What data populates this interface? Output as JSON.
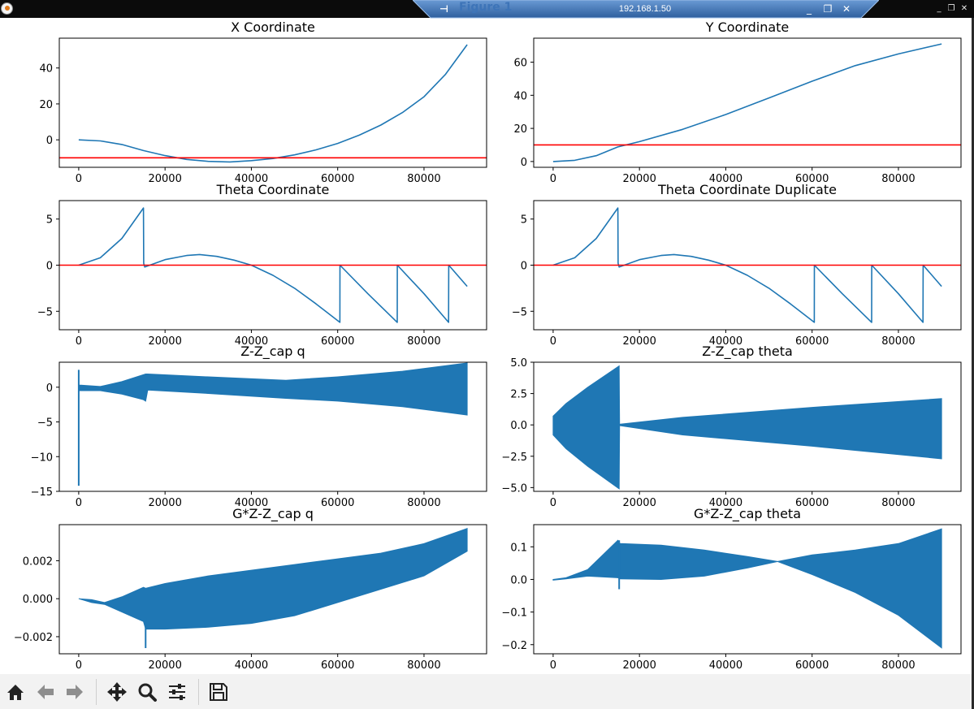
{
  "window": {
    "title": "Figure 1",
    "remote_host": "192.168.1.50",
    "controls": {
      "minimize": "_",
      "restore": "❐",
      "close": "✕"
    },
    "remote_controls": {
      "minimize": "_",
      "restore": "❐",
      "close": "✕"
    },
    "pin_icon": "pin-icon"
  },
  "toolbar": {
    "buttons": [
      {
        "name": "home-button",
        "icon": "home-icon"
      },
      {
        "name": "back-button",
        "icon": "arrow-left-icon"
      },
      {
        "name": "forward-button",
        "icon": "arrow-right-icon"
      },
      {
        "name": "pan-button",
        "icon": "move-icon"
      },
      {
        "name": "zoom-button",
        "icon": "magnifier-icon"
      },
      {
        "name": "configure-subplots-button",
        "icon": "sliders-icon"
      },
      {
        "name": "save-button",
        "icon": "floppy-disk-icon"
      }
    ]
  },
  "colors": {
    "series": "#1f77b4",
    "reference_line": "#ff0000",
    "titlebar": "#0b0b0b",
    "toolbar": "#f2f2f2"
  },
  "chart_data": [
    {
      "type": "line",
      "title": "X Coordinate",
      "xlim": [
        -4500,
        94500
      ],
      "ylim": [
        -15.3,
        56.6
      ],
      "xticks": [
        0,
        20000,
        40000,
        60000,
        80000
      ],
      "xtick_labels": [
        "0",
        "20000",
        "40000",
        "60000",
        "80000"
      ],
      "yticks": [
        0,
        20,
        40
      ],
      "ytick_labels": [
        "0",
        "20",
        "40"
      ],
      "hline": -10,
      "series": [
        {
          "x": [
            0,
            5000,
            10000,
            15000,
            20000,
            25000,
            30000,
            35000,
            40000,
            45000,
            50000,
            55000,
            60000,
            65000,
            70000,
            75000,
            80000,
            85000,
            90000
          ],
          "y": [
            0,
            -0.6,
            -2.6,
            -6.0,
            -8.8,
            -10.9,
            -12.0,
            -12.3,
            -11.6,
            -10.4,
            -8.4,
            -5.6,
            -2.0,
            2.6,
            8.2,
            15.2,
            24.0,
            36.5,
            53
          ]
        }
      ]
    },
    {
      "type": "line",
      "title": "Y Coordinate",
      "xlim": [
        -4500,
        94500
      ],
      "ylim": [
        -3.5,
        74.5
      ],
      "xticks": [
        0,
        20000,
        40000,
        60000,
        80000
      ],
      "xtick_labels": [
        "0",
        "20000",
        "40000",
        "60000",
        "80000"
      ],
      "yticks": [
        0,
        20,
        40,
        60
      ],
      "ytick_labels": [
        "0",
        "20",
        "40",
        "60"
      ],
      "hline": 10,
      "series": [
        {
          "x": [
            0,
            5000,
            10000,
            15000,
            20000,
            30000,
            40000,
            50000,
            60000,
            70000,
            80000,
            90000
          ],
          "y": [
            0,
            0.7,
            3.5,
            8.8,
            12.0,
            19.4,
            28.4,
            38.4,
            48.5,
            57.9,
            65.0,
            71
          ]
        }
      ]
    },
    {
      "type": "line",
      "title": "Theta Coordinate",
      "xlim": [
        -4500,
        94500
      ],
      "ylim": [
        -7,
        7
      ],
      "xticks": [
        0,
        20000,
        40000,
        60000,
        80000
      ],
      "xtick_labels": [
        "0",
        "20000",
        "40000",
        "60000",
        "80000"
      ],
      "yticks": [
        -5,
        0,
        5
      ],
      "ytick_labels": [
        "−5",
        "0",
        "5"
      ],
      "hline": 0,
      "series": [
        {
          "x": [
            0,
            5000,
            10000,
            15000,
            15050,
            15300,
            20000,
            25000,
            28000,
            32000,
            36000,
            40000,
            45000,
            50000,
            55000,
            60500,
            60520,
            67000,
            73800,
            73820,
            80000,
            85700,
            85720,
            90000
          ],
          "y": [
            0,
            0.8,
            2.9,
            6.2,
            0.2,
            -0.2,
            0.6,
            1.05,
            1.15,
            0.95,
            0.55,
            0,
            -1.1,
            -2.5,
            -4.2,
            -6.2,
            0,
            -3.1,
            -6.2,
            0,
            -3.1,
            -6.2,
            0,
            -2.3
          ]
        }
      ]
    },
    {
      "type": "line",
      "title": "Theta Coordinate Duplicate",
      "xlim": [
        -4500,
        94500
      ],
      "ylim": [
        -7,
        7
      ],
      "xticks": [
        0,
        20000,
        40000,
        60000,
        80000
      ],
      "xtick_labels": [
        "0",
        "20000",
        "40000",
        "60000",
        "80000"
      ],
      "yticks": [
        -5,
        0,
        5
      ],
      "ytick_labels": [
        "−5",
        "0",
        "5"
      ],
      "hline": 0,
      "series": [
        {
          "x": [
            0,
            5000,
            10000,
            15000,
            15050,
            15300,
            20000,
            25000,
            28000,
            32000,
            36000,
            40000,
            45000,
            50000,
            55000,
            60500,
            60520,
            67000,
            73800,
            73820,
            80000,
            85700,
            85720,
            90000
          ],
          "y": [
            0,
            0.8,
            2.9,
            6.2,
            0.2,
            -0.2,
            0.6,
            1.05,
            1.15,
            0.95,
            0.55,
            0,
            -1.1,
            -2.5,
            -4.2,
            -6.2,
            0,
            -3.1,
            -6.2,
            0,
            -3.1,
            -6.2,
            0,
            -2.3
          ]
        }
      ]
    },
    {
      "type": "area",
      "title": "Z-Z_cap q",
      "xlim": [
        -4500,
        94500
      ],
      "ylim": [
        -15,
        3.6
      ],
      "xticks": [
        0,
        20000,
        40000,
        60000,
        80000
      ],
      "xtick_labels": [
        "0",
        "20000",
        "40000",
        "60000",
        "80000"
      ],
      "yticks": [
        -15,
        -10,
        -5,
        0
      ],
      "ytick_labels": [
        "−15",
        "−10",
        "−5",
        "0"
      ],
      "spikes": [
        {
          "x": 0,
          "ymin": -14.2,
          "ymax": 2.5
        }
      ],
      "series": [
        {
          "x": [
            0,
            500,
            5000,
            10000,
            15000,
            15500,
            16000,
            30000,
            48000,
            60000,
            75000,
            90000
          ],
          "upper": [
            0.3,
            0.3,
            0.1,
            0.8,
            1.8,
            1.9,
            1.9,
            1.5,
            1.0,
            1.5,
            2.3,
            3.5
          ],
          "lower": [
            -0.5,
            -0.5,
            -0.5,
            -1.0,
            -1.8,
            -2.0,
            -0.4,
            -0.9,
            -1.6,
            -2.0,
            -2.8,
            -4.0
          ]
        }
      ]
    },
    {
      "type": "area",
      "title": "Z-Z_cap theta",
      "xlim": [
        -4500,
        94500
      ],
      "ylim": [
        -5.3,
        5.0
      ],
      "xticks": [
        0,
        20000,
        40000,
        60000,
        80000
      ],
      "xtick_labels": [
        "0",
        "20000",
        "40000",
        "60000",
        "80000"
      ],
      "yticks": [
        -5,
        -2.5,
        0,
        2.5,
        5
      ],
      "ytick_labels": [
        "−5.0",
        "−2.5",
        "0.0",
        "2.5",
        "5.0"
      ],
      "series": [
        {
          "x": [
            0,
            3000,
            8000,
            15300,
            15400,
            30000,
            60000,
            90000
          ],
          "upper": [
            0.7,
            1.7,
            3.0,
            4.7,
            0.05,
            0.6,
            1.4,
            2.1
          ],
          "lower": [
            -0.8,
            -1.9,
            -3.3,
            -5.1,
            -0.05,
            -0.8,
            -1.7,
            -2.7
          ]
        }
      ]
    },
    {
      "type": "area",
      "title": "G*Z-Z_cap q",
      "xlim": [
        -4500,
        94500
      ],
      "ylim": [
        -0.0029,
        0.0039
      ],
      "xticks": [
        0,
        20000,
        40000,
        60000,
        80000
      ],
      "xtick_labels": [
        "0",
        "20000",
        "40000",
        "60000",
        "80000"
      ],
      "yticks": [
        -0.002,
        0,
        0.002
      ],
      "ytick_labels": [
        "−0.002",
        "0.000",
        "0.002"
      ],
      "spikes": [
        {
          "x": 15500,
          "ymin": -0.0026,
          "ymax": -0.001
        }
      ],
      "series": [
        {
          "x": [
            0,
            3000,
            6000,
            10000,
            15000,
            15500,
            20000,
            30000,
            40000,
            50000,
            60000,
            70000,
            80000,
            90000
          ],
          "upper": [
            0,
            -5e-05,
            -0.0002,
            0.0001,
            0.0006,
            0.00055,
            0.0008,
            0.0012,
            0.0015,
            0.0018,
            0.0021,
            0.0024,
            0.0029,
            0.0037
          ],
          "lower": [
            0,
            -0.0002,
            -0.0003,
            -0.0007,
            -0.0012,
            -0.0016,
            -0.0016,
            -0.0015,
            -0.0013,
            -0.0009,
            -0.0002,
            0.0005,
            0.0012,
            0.0025
          ]
        }
      ]
    },
    {
      "type": "area",
      "title": "G*Z-Z_cap theta",
      "xlim": [
        -4500,
        94500
      ],
      "ylim": [
        -0.228,
        0.168
      ],
      "xticks": [
        0,
        20000,
        40000,
        60000,
        80000
      ],
      "xtick_labels": [
        "0",
        "20000",
        "40000",
        "60000",
        "80000"
      ],
      "yticks": [
        -0.2,
        -0.1,
        0,
        0.1
      ],
      "ytick_labels": [
        "−0.2",
        "−0.1",
        "0.0",
        "0.1"
      ],
      "spikes": [
        {
          "x": 15300,
          "ymin": -0.03,
          "ymax": 0.12
        }
      ],
      "series": [
        {
          "x": [
            0,
            3000,
            8000,
            15000,
            15500,
            25000,
            35000,
            45000,
            52000,
            60000,
            70000,
            80000,
            90000
          ],
          "upper": [
            0,
            0.005,
            0.03,
            0.12,
            0.11,
            0.105,
            0.09,
            0.07,
            0.055,
            0.075,
            0.09,
            0.11,
            0.155
          ],
          "lower": [
            -0.002,
            0.002,
            0.01,
            0.005,
            0.002,
            0.0,
            0.01,
            0.035,
            0.055,
            0.015,
            -0.04,
            -0.11,
            -0.21
          ]
        }
      ]
    }
  ]
}
